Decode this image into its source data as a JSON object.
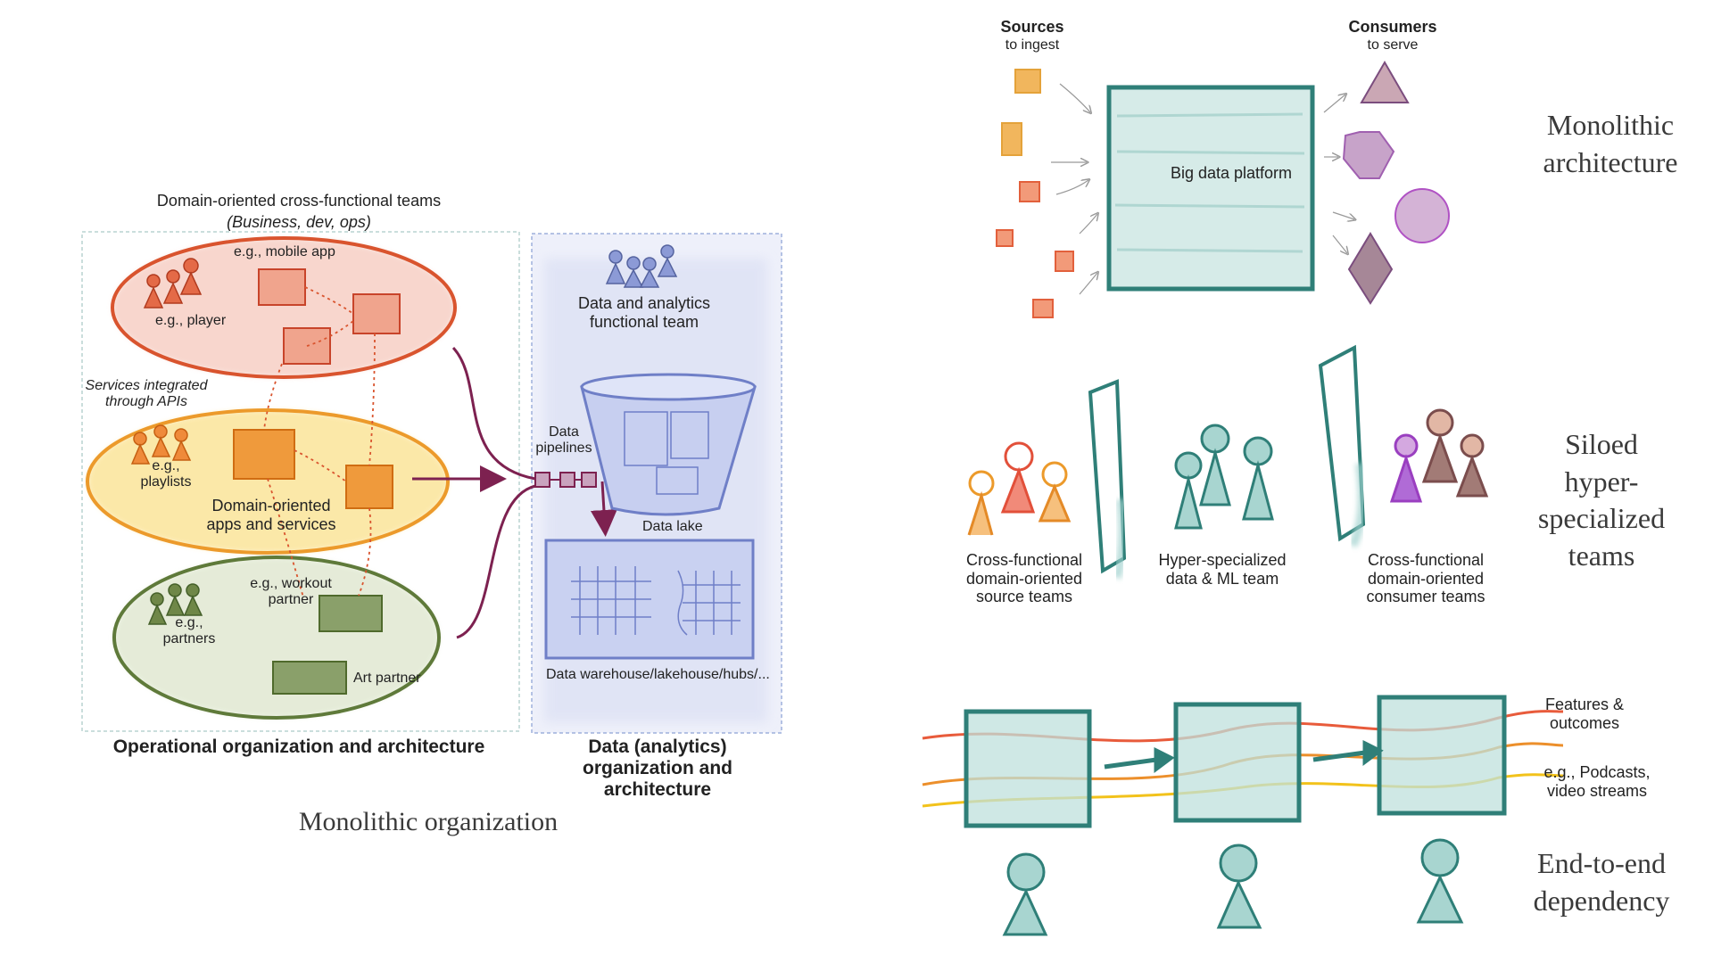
{
  "left_diagram": {
    "top_title": "Domain-oriented cross-functional teams",
    "top_subtitle": "(Business, dev, ops)",
    "red_domain": {
      "app_label": "e.g., mobile app",
      "team_label": "e.g., player"
    },
    "apis_label": "Services integrated through APIs",
    "yellow_domain": {
      "team_label": "e.g., playlists",
      "center_label": "Domain-oriented apps and services"
    },
    "green_domain": {
      "partner_label": "e.g., workout partner",
      "team_label": "e.g., partners",
      "art_label": "Art partner"
    },
    "data_team_label": "Data and analytics functional team",
    "pipelines_label": "Data pipelines",
    "lake_label": "Data lake",
    "warehouse_label": "Data warehouse/lakehouse/hubs/...",
    "operational_caption": "Operational organization and architecture",
    "analytics_caption": "Data (analytics) organization and architecture",
    "bottom_caption": "Monolithic organization"
  },
  "monolithic": {
    "sources_title": "Sources",
    "sources_sub": "to ingest",
    "consumers_title": "Consumers",
    "consumers_sub": "to serve",
    "platform_label": "Big data platform",
    "side_label": "Monolithic architecture"
  },
  "siloed": {
    "source_teams_label": "Cross-functional domain-oriented source teams",
    "data_team_label": "Hyper-specialized data & ML team",
    "consumer_teams_label": "Cross-functional domain-oriented consumer teams",
    "side_label": "Siloed hyper- specialized teams"
  },
  "dependency": {
    "features_label": "Features & outcomes",
    "streams_label": "e.g., Podcasts, video streams",
    "side_label": "End-to-end dependency"
  },
  "colors": {
    "red": "#d9542e",
    "orange": "#ec8f2b",
    "yellow": "#f2c21b",
    "green": "#5f7a3a",
    "blue": "#7f8fd6",
    "teal": "#2f7f78",
    "maroon": "#7d2150",
    "purple": "#7b4d7e"
  }
}
